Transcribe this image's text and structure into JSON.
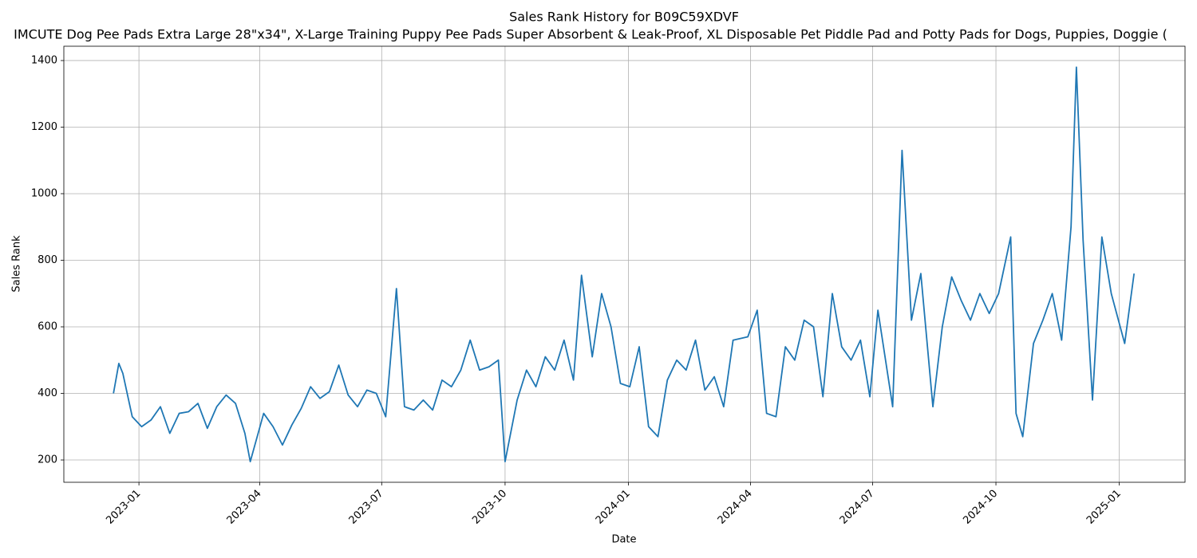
{
  "chart_data": {
    "type": "line",
    "title": "Sales Rank History for B09C59XDVF",
    "subtitle": "IMCUTE Dog Pee Pads Extra Large 28\"x34\", X-Large Training Puppy Pee Pads Super Absorbent & Leak-Proof, XL Disposable Pet Piddle Pad and Potty Pads for Dogs, Puppies, Doggie (",
    "x_label": "Date",
    "y_label": "Sales Rank",
    "x": [
      "2022-12-13",
      "2022-12-17",
      "2022-12-20",
      "2022-12-27",
      "2023-01-03",
      "2023-01-10",
      "2023-01-17",
      "2023-01-24",
      "2023-01-31",
      "2023-02-07",
      "2023-02-14",
      "2023-02-21",
      "2023-02-28",
      "2023-03-07",
      "2023-03-14",
      "2023-03-21",
      "2023-03-25",
      "2023-04-04",
      "2023-04-11",
      "2023-04-18",
      "2023-04-25",
      "2023-05-02",
      "2023-05-09",
      "2023-05-16",
      "2023-05-23",
      "2023-05-30",
      "2023-06-06",
      "2023-06-13",
      "2023-06-20",
      "2023-06-27",
      "2023-07-04",
      "2023-07-12",
      "2023-07-18",
      "2023-07-25",
      "2023-08-01",
      "2023-08-08",
      "2023-08-15",
      "2023-08-22",
      "2023-08-29",
      "2023-09-05",
      "2023-09-12",
      "2023-09-19",
      "2023-09-26",
      "2023-10-01",
      "2023-10-10",
      "2023-10-17",
      "2023-10-24",
      "2023-10-31",
      "2023-11-07",
      "2023-11-14",
      "2023-11-21",
      "2023-11-27",
      "2023-12-05",
      "2023-12-12",
      "2023-12-19",
      "2023-12-26",
      "2024-01-02",
      "2024-01-09",
      "2024-01-16",
      "2024-01-23",
      "2024-01-30",
      "2024-02-06",
      "2024-02-13",
      "2024-02-20",
      "2024-02-27",
      "2024-03-05",
      "2024-03-12",
      "2024-03-19",
      "2024-03-30",
      "2024-04-06",
      "2024-04-13",
      "2024-04-20",
      "2024-04-27",
      "2024-05-04",
      "2024-05-11",
      "2024-05-18",
      "2024-05-25",
      "2024-06-01",
      "2024-06-08",
      "2024-06-15",
      "2024-06-22",
      "2024-06-29",
      "2024-07-05",
      "2024-07-16",
      "2024-07-23",
      "2024-07-30",
      "2024-08-06",
      "2024-08-15",
      "2024-08-22",
      "2024-08-29",
      "2024-09-05",
      "2024-09-12",
      "2024-09-19",
      "2024-09-26",
      "2024-10-03",
      "2024-10-12",
      "2024-10-16",
      "2024-10-21",
      "2024-10-29",
      "2024-11-05",
      "2024-11-12",
      "2024-11-19",
      "2024-11-26",
      "2024-11-30",
      "2024-12-05",
      "2024-12-12",
      "2024-12-19",
      "2024-12-26",
      "2025-01-05",
      "2025-01-12"
    ],
    "series": [
      {
        "name": "Sales Rank",
        "color": "#1f77b4",
        "values": [
          400,
          490,
          460,
          330,
          300,
          320,
          360,
          280,
          340,
          345,
          370,
          295,
          360,
          395,
          370,
          280,
          195,
          340,
          300,
          245,
          305,
          355,
          420,
          385,
          405,
          485,
          395,
          360,
          410,
          400,
          330,
          715,
          360,
          350,
          380,
          350,
          440,
          420,
          470,
          560,
          470,
          480,
          500,
          195,
          380,
          470,
          420,
          510,
          470,
          560,
          440,
          755,
          510,
          700,
          600,
          430,
          420,
          540,
          300,
          270,
          440,
          500,
          470,
          560,
          410,
          450,
          360,
          560,
          570,
          650,
          340,
          330,
          540,
          500,
          620,
          600,
          390,
          700,
          540,
          500,
          560,
          390,
          650,
          360,
          1130,
          620,
          760,
          360,
          600,
          750,
          680,
          620,
          700,
          640,
          700,
          870,
          340,
          270,
          550,
          620,
          700,
          560,
          900,
          1380,
          860,
          380,
          870,
          700,
          550,
          760
        ]
      }
    ],
    "xlim": [
      "2022-11-06",
      "2025-02-19"
    ],
    "xticks": [
      {
        "value": "2023-01-01",
        "label": "2023-01"
      },
      {
        "value": "2023-04-01",
        "label": "2023-04"
      },
      {
        "value": "2023-07-01",
        "label": "2023-07"
      },
      {
        "value": "2023-10-01",
        "label": "2023-10"
      },
      {
        "value": "2024-01-01",
        "label": "2024-01"
      },
      {
        "value": "2024-04-01",
        "label": "2024-04"
      },
      {
        "value": "2024-07-01",
        "label": "2024-07"
      },
      {
        "value": "2024-10-01",
        "label": "2024-10"
      },
      {
        "value": "2025-01-01",
        "label": "2025-01"
      }
    ],
    "ylim": [
      133,
      1443
    ],
    "yticks": [
      200,
      400,
      600,
      800,
      1000,
      1200,
      1400
    ],
    "grid": true
  }
}
